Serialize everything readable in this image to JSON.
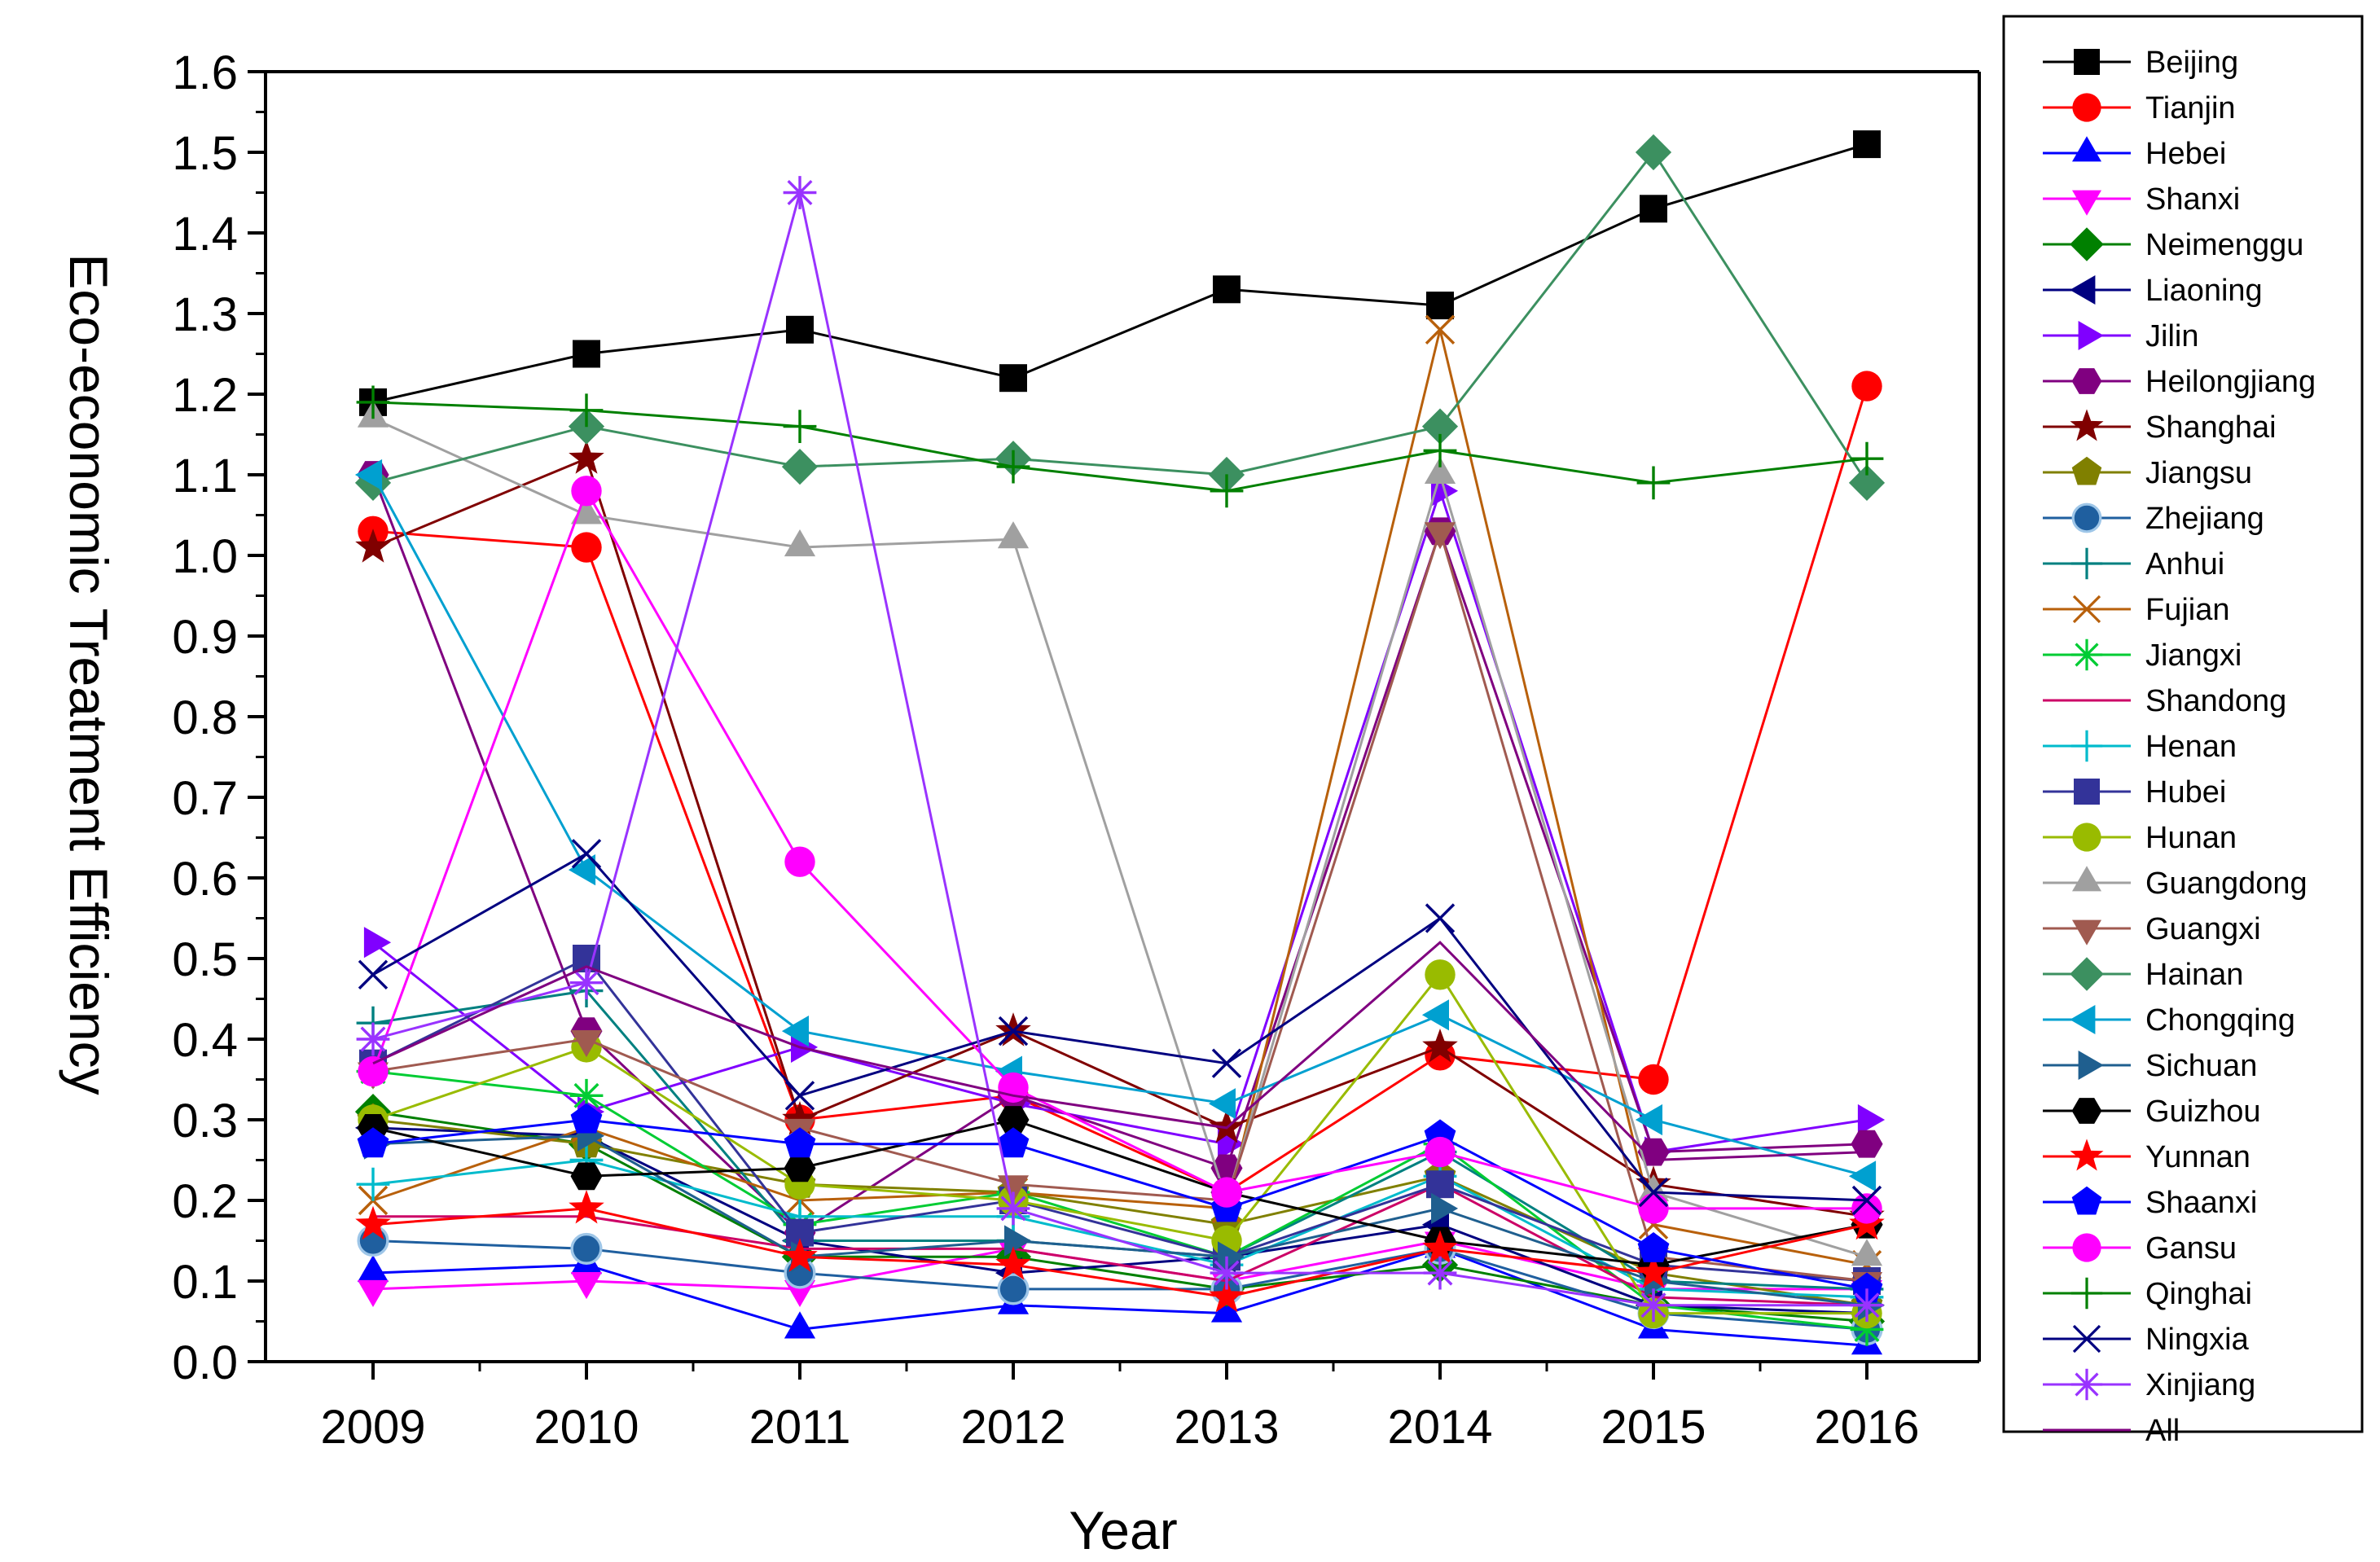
{
  "chart_data": {
    "type": "line",
    "title": "",
    "xlabel": "Year",
    "ylabel": "Eco-economic Treatment Efficiency",
    "x": [
      "2009",
      "2010",
      "2011",
      "2012",
      "2013",
      "2014",
      "2015",
      "2016"
    ],
    "ylim": [
      0.0,
      1.6
    ],
    "yticks": [
      "0.0",
      "0.1",
      "0.2",
      "0.3",
      "0.4",
      "0.5",
      "0.6",
      "0.7",
      "0.8",
      "0.9",
      "1.0",
      "1.1",
      "1.2",
      "1.3",
      "1.4",
      "1.5",
      "1.6"
    ],
    "grid": false,
    "legend_position": "right, outside plot",
    "series": [
      {
        "name": "Beijing",
        "color": "#000000",
        "marker": "square",
        "values": [
          1.19,
          1.25,
          1.28,
          1.22,
          1.33,
          1.31,
          1.43,
          1.51
        ]
      },
      {
        "name": "Tianjin",
        "color": "#FF0000",
        "marker": "circle",
        "values": [
          1.03,
          1.01,
          0.3,
          0.33,
          0.21,
          0.38,
          0.35,
          1.21
        ]
      },
      {
        "name": "Hebei",
        "color": "#0000FF",
        "marker": "triangle-up",
        "values": [
          0.11,
          0.12,
          0.04,
          0.07,
          0.06,
          0.14,
          0.04,
          0.02
        ]
      },
      {
        "name": "Shanxi",
        "color": "#FF00FF",
        "marker": "triangle-down",
        "values": [
          0.09,
          0.1,
          0.09,
          0.14,
          0.1,
          0.15,
          0.09,
          0.09
        ]
      },
      {
        "name": "Neimenggu",
        "color": "#008000",
        "marker": "diamond",
        "values": [
          0.31,
          0.27,
          0.13,
          0.13,
          0.09,
          0.12,
          0.07,
          0.05
        ]
      },
      {
        "name": "Liaoning",
        "color": "#000080",
        "marker": "triangle-left",
        "values": [
          0.29,
          0.28,
          0.15,
          0.11,
          0.13,
          0.17,
          0.07,
          0.06
        ]
      },
      {
        "name": "Jilin",
        "color": "#8000FF",
        "marker": "triangle-right",
        "values": [
          0.52,
          0.31,
          0.39,
          0.32,
          0.27,
          1.08,
          0.26,
          0.3
        ]
      },
      {
        "name": "Heilongjiang",
        "color": "#800080",
        "marker": "hexagon",
        "values": [
          1.1,
          0.41,
          0.16,
          0.33,
          0.24,
          1.03,
          0.26,
          0.27
        ]
      },
      {
        "name": "Shanghai",
        "color": "#800000",
        "marker": "star",
        "values": [
          1.01,
          1.12,
          0.3,
          0.41,
          0.29,
          0.39,
          0.22,
          0.18
        ]
      },
      {
        "name": "Jiangsu",
        "color": "#808000",
        "marker": "pentagon",
        "values": [
          0.3,
          0.27,
          0.22,
          0.21,
          0.17,
          0.23,
          0.11,
          0.07
        ]
      },
      {
        "name": "Zhejiang",
        "color": "#1F5F9F",
        "marker": "sphere",
        "values": [
          0.15,
          0.14,
          0.11,
          0.09,
          0.09,
          0.14,
          0.06,
          0.04
        ]
      },
      {
        "name": "Anhui",
        "color": "#008080",
        "marker": "plus",
        "values": [
          0.42,
          0.46,
          0.15,
          0.15,
          0.13,
          0.26,
          0.1,
          0.09
        ]
      },
      {
        "name": "Fujian",
        "color": "#B8600B",
        "marker": "x",
        "values": [
          0.2,
          0.29,
          0.2,
          0.21,
          0.19,
          1.28,
          0.17,
          0.12
        ]
      },
      {
        "name": "Jiangxi",
        "color": "#00CC33",
        "marker": "asterisk",
        "values": [
          0.36,
          0.33,
          0.17,
          0.21,
          0.13,
          0.27,
          0.07,
          0.04
        ]
      },
      {
        "name": "Shandong",
        "color": "#CC0066",
        "marker": "dash",
        "values": [
          0.18,
          0.18,
          0.14,
          0.14,
          0.1,
          0.22,
          0.08,
          0.07
        ]
      },
      {
        "name": "Henan",
        "color": "#00BBCC",
        "marker": "plus",
        "values": [
          0.22,
          0.25,
          0.18,
          0.18,
          0.12,
          0.23,
          0.09,
          0.08
        ]
      },
      {
        "name": "Hubei",
        "color": "#333399",
        "marker": "square",
        "values": [
          0.37,
          0.5,
          0.16,
          0.2,
          0.13,
          0.22,
          0.12,
          0.1
        ]
      },
      {
        "name": "Hunan",
        "color": "#99BB00",
        "marker": "circle",
        "values": [
          0.3,
          0.39,
          0.22,
          0.2,
          0.15,
          0.48,
          0.06,
          0.06
        ]
      },
      {
        "name": "Guangdong",
        "color": "#A0A0A0",
        "marker": "triangle-up",
        "values": [
          1.17,
          1.05,
          1.01,
          1.02,
          0.2,
          1.1,
          0.21,
          0.13
        ]
      },
      {
        "name": "Guangxi",
        "color": "#A05A50",
        "marker": "triangle-down",
        "values": [
          0.36,
          0.4,
          0.29,
          0.22,
          0.2,
          1.03,
          0.13,
          0.1
        ]
      },
      {
        "name": "Hainan",
        "color": "#3C9060",
        "marker": "diamond",
        "values": [
          1.09,
          1.16,
          1.11,
          1.12,
          1.1,
          1.16,
          1.5,
          1.09
        ]
      },
      {
        "name": "Chongqing",
        "color": "#00A0D0",
        "marker": "triangle-left",
        "values": [
          1.1,
          0.61,
          0.41,
          0.36,
          0.32,
          0.43,
          0.3,
          0.23
        ]
      },
      {
        "name": "Sichuan",
        "color": "#1F5F8F",
        "marker": "triangle-right",
        "values": [
          0.27,
          0.28,
          0.13,
          0.15,
          0.13,
          0.19,
          0.1,
          0.07
        ]
      },
      {
        "name": "Guizhou",
        "color": "#000000",
        "marker": "hexagon",
        "values": [
          0.29,
          0.23,
          0.24,
          0.3,
          0.21,
          0.15,
          0.12,
          0.17
        ]
      },
      {
        "name": "Yunnan",
        "color": "#FF0000",
        "marker": "star",
        "values": [
          0.17,
          0.19,
          0.13,
          0.12,
          0.08,
          0.14,
          0.11,
          0.17
        ]
      },
      {
        "name": "Shaanxi",
        "color": "#0000FF",
        "marker": "pentagon",
        "values": [
          0.27,
          0.3,
          0.27,
          0.27,
          0.19,
          0.28,
          0.14,
          0.09
        ]
      },
      {
        "name": "Gansu",
        "color": "#FF00FF",
        "marker": "circle",
        "values": [
          0.36,
          1.08,
          0.62,
          0.34,
          0.21,
          0.26,
          0.19,
          0.19
        ]
      },
      {
        "name": "Qinghai",
        "color": "#008000",
        "marker": "plus",
        "values": [
          1.19,
          1.18,
          1.16,
          1.11,
          1.08,
          1.13,
          1.09,
          1.12
        ]
      },
      {
        "name": "Ningxia",
        "color": "#000080",
        "marker": "x",
        "values": [
          0.48,
          0.63,
          0.33,
          0.41,
          0.37,
          0.55,
          0.21,
          0.2
        ]
      },
      {
        "name": "Xinjiang",
        "color": "#9933FF",
        "marker": "asterisk",
        "values": [
          0.4,
          0.47,
          1.45,
          0.19,
          0.11,
          0.11,
          0.07,
          0.07
        ]
      },
      {
        "name": "All",
        "color": "#800080",
        "marker": "dash",
        "values": [
          0.37,
          0.49,
          0.39,
          0.33,
          0.29,
          0.52,
          0.25,
          0.26
        ]
      }
    ]
  }
}
